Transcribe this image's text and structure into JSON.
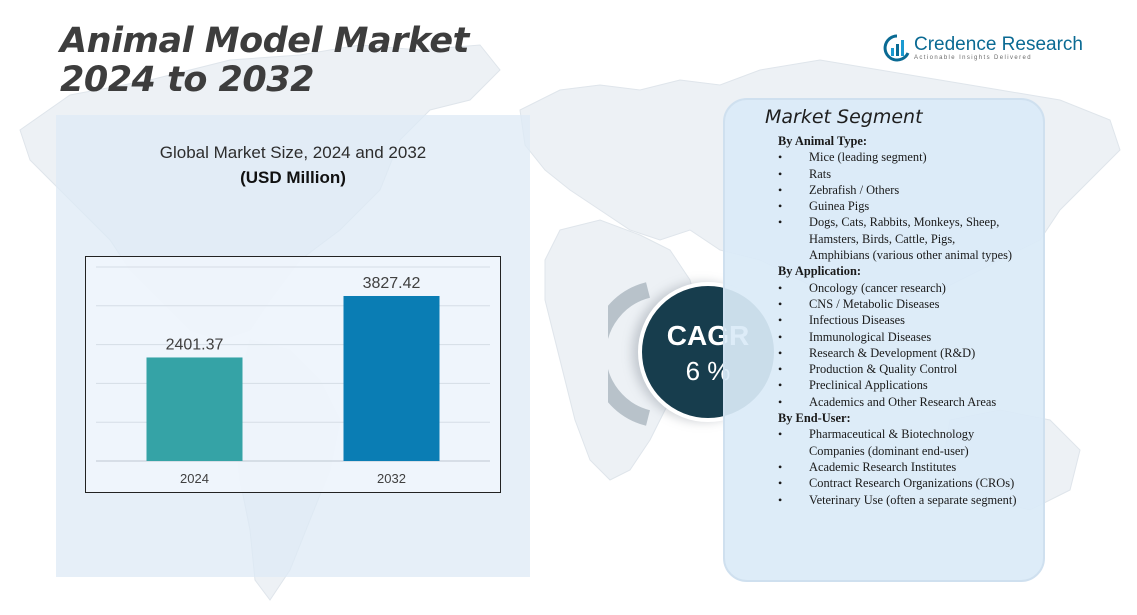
{
  "title": {
    "line1": "Animal Model Market",
    "line2": "2024 to 2032"
  },
  "logo": {
    "name": "Credence Research",
    "tagline": "Actionable Insights Delivered",
    "icon": "credence-logo-icon",
    "brand_color": "#0a6a93"
  },
  "chart_data": {
    "type": "bar",
    "title": "Global Market Size,  2024 and 2032",
    "subtitle": "(USD Million)",
    "categories": [
      "2024",
      "2032"
    ],
    "values": [
      2401.37,
      3827.42
    ],
    "value_labels": [
      "2401.37",
      "3827.42"
    ],
    "colors": [
      "#35a3a6",
      "#0a7db4"
    ],
    "ylim": [
      0,
      4500
    ],
    "grid": true,
    "legend": "none"
  },
  "cagr": {
    "label": "CAGR",
    "value": "6 %"
  },
  "segment": {
    "title": "Market Segment",
    "groups": [
      {
        "heading": "By Animal Type:",
        "items": [
          "Mice (leading  segment)",
          "Rats",
          "Zebrafish  / Others",
          "Guinea  Pigs",
          "Dogs, Cats, Rabbits,  Monkeys, Sheep, Hamsters,  Birds,  Cattle,  Pigs, Amphibians  (various  other animal types)"
        ]
      },
      {
        "heading": "By Application:",
        "items": [
          "Oncology  (cancer research)",
          "CNS / Metabolic  Diseases",
          "Infectious  Diseases",
          "Immunological  Diseases",
          "Research  & Development  (R&D)",
          "Production  & Quality  Control",
          "Preclinical  Applications",
          "Academics  and Other Research Areas"
        ]
      },
      {
        "heading": "By End-User:",
        "items": [
          "Pharmaceutical  & Biotechnology Companies  (dominant  end-user)",
          "Academic  Research Institutes",
          "Contract Research Organizations (CROs)",
          "Veterinary  Use (often  a separate segment)"
        ]
      }
    ]
  }
}
